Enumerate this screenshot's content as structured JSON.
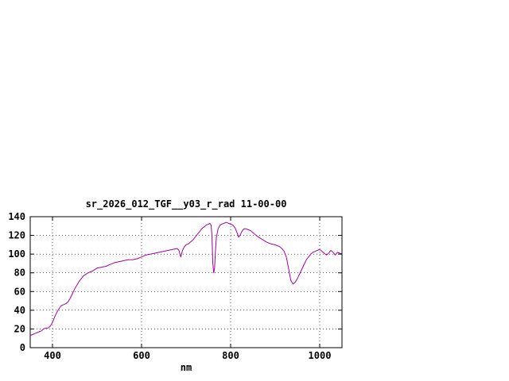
{
  "chart_data": {
    "type": "line",
    "title": "sr_2026_012_TGF__y03_r_rad 11-00-00",
    "xlabel": "nm",
    "ylabel": "",
    "xlim": [
      350,
      1050
    ],
    "ylim": [
      0,
      140
    ],
    "xticks": [
      400,
      600,
      800,
      1000
    ],
    "yticks": [
      0,
      20,
      40,
      60,
      80,
      100,
      120,
      140
    ],
    "grid": true,
    "legend": "none",
    "colors": {
      "line": "#a000a0",
      "grid": "#000000",
      "border": "#000000",
      "text": "#000000",
      "background": "#ffffff"
    },
    "series": [
      {
        "name": "sr_2026_012_TGF__y03_r_rad",
        "points": [
          [
            350,
            13
          ],
          [
            355,
            14
          ],
          [
            360,
            15
          ],
          [
            365,
            16
          ],
          [
            370,
            17
          ],
          [
            375,
            18
          ],
          [
            380,
            20
          ],
          [
            385,
            21
          ],
          [
            390,
            21
          ],
          [
            395,
            23
          ],
          [
            400,
            27
          ],
          [
            405,
            33
          ],
          [
            410,
            38
          ],
          [
            415,
            42
          ],
          [
            420,
            45
          ],
          [
            425,
            46
          ],
          [
            430,
            47
          ],
          [
            435,
            49
          ],
          [
            440,
            53
          ],
          [
            445,
            58
          ],
          [
            450,
            63
          ],
          [
            455,
            67
          ],
          [
            460,
            71
          ],
          [
            465,
            74
          ],
          [
            470,
            77
          ],
          [
            480,
            80
          ],
          [
            490,
            82
          ],
          [
            500,
            85
          ],
          [
            510,
            86
          ],
          [
            520,
            87
          ],
          [
            530,
            89
          ],
          [
            540,
            91
          ],
          [
            550,
            92
          ],
          [
            560,
            93
          ],
          [
            570,
            94
          ],
          [
            580,
            94
          ],
          [
            590,
            95
          ],
          [
            600,
            97
          ],
          [
            610,
            99
          ],
          [
            620,
            100
          ],
          [
            630,
            101
          ],
          [
            640,
            102
          ],
          [
            650,
            103
          ],
          [
            660,
            104
          ],
          [
            670,
            105
          ],
          [
            680,
            106
          ],
          [
            684,
            104
          ],
          [
            688,
            97
          ],
          [
            692,
            104
          ],
          [
            696,
            108
          ],
          [
            700,
            110
          ],
          [
            705,
            111
          ],
          [
            710,
            113
          ],
          [
            715,
            115
          ],
          [
            720,
            118
          ],
          [
            725,
            121
          ],
          [
            730,
            124
          ],
          [
            735,
            127
          ],
          [
            740,
            129
          ],
          [
            745,
            131
          ],
          [
            750,
            132
          ],
          [
            753,
            133
          ],
          [
            756,
            131
          ],
          [
            758,
            120
          ],
          [
            760,
            90
          ],
          [
            762,
            80
          ],
          [
            764,
            85
          ],
          [
            766,
            105
          ],
          [
            768,
            118
          ],
          [
            772,
            127
          ],
          [
            776,
            131
          ],
          [
            780,
            132
          ],
          [
            785,
            133
          ],
          [
            790,
            134
          ],
          [
            795,
            133
          ],
          [
            800,
            132
          ],
          [
            805,
            131
          ],
          [
            810,
            128
          ],
          [
            815,
            122
          ],
          [
            818,
            118
          ],
          [
            822,
            121
          ],
          [
            826,
            125
          ],
          [
            830,
            127
          ],
          [
            835,
            127
          ],
          [
            840,
            126
          ],
          [
            845,
            125
          ],
          [
            850,
            123
          ],
          [
            855,
            121
          ],
          [
            860,
            119
          ],
          [
            870,
            116
          ],
          [
            880,
            113
          ],
          [
            890,
            111
          ],
          [
            900,
            110
          ],
          [
            910,
            108
          ],
          [
            915,
            106
          ],
          [
            920,
            103
          ],
          [
            925,
            97
          ],
          [
            930,
            85
          ],
          [
            935,
            72
          ],
          [
            940,
            68
          ],
          [
            945,
            70
          ],
          [
            950,
            74
          ],
          [
            955,
            79
          ],
          [
            960,
            84
          ],
          [
            965,
            89
          ],
          [
            970,
            94
          ],
          [
            975,
            97
          ],
          [
            980,
            100
          ],
          [
            985,
            102
          ],
          [
            990,
            103
          ],
          [
            995,
            104
          ],
          [
            1000,
            105
          ],
          [
            1005,
            103
          ],
          [
            1010,
            101
          ],
          [
            1015,
            99
          ],
          [
            1020,
            101
          ],
          [
            1025,
            104
          ],
          [
            1030,
            102
          ],
          [
            1035,
            99
          ],
          [
            1040,
            102
          ],
          [
            1045,
            101
          ],
          [
            1050,
            100
          ]
        ]
      }
    ]
  }
}
